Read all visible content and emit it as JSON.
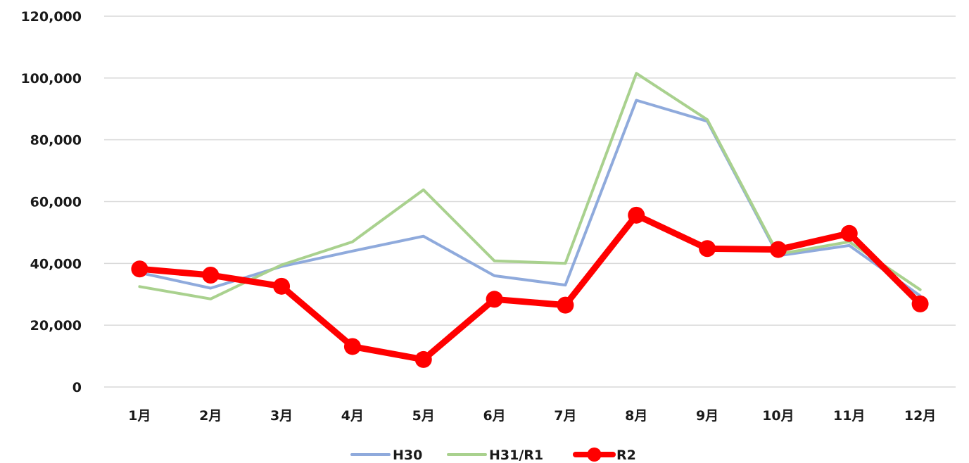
{
  "chart_data": {
    "type": "line",
    "categories": [
      "1月",
      "2月",
      "3月",
      "4月",
      "5月",
      "6月",
      "7月",
      "8月",
      "9月",
      "10月",
      "11月",
      "12月"
    ],
    "ylim": [
      0,
      120000
    ],
    "yticks": [
      0,
      20000,
      40000,
      60000,
      80000,
      100000,
      120000
    ],
    "ytick_labels": [
      "0",
      "20,000",
      "40,000",
      "60,000",
      "80,000",
      "100,000",
      "120,000"
    ],
    "grid": true,
    "legend_position": "bottom",
    "series": [
      {
        "name": "H30",
        "color": "#8faadc",
        "markers": false,
        "values": [
          37000,
          32000,
          39000,
          44000,
          48800,
          36000,
          33000,
          92800,
          86000,
          42500,
          45800,
          29500
        ]
      },
      {
        "name": "H31/R1",
        "color": "#a9d18e",
        "markers": false,
        "values": [
          32500,
          28500,
          39500,
          47000,
          63800,
          40800,
          40000,
          101500,
          86500,
          43000,
          47000,
          31500
        ]
      },
      {
        "name": "R2",
        "color": "#ff0000",
        "markers": true,
        "values": [
          38200,
          36200,
          32600,
          13100,
          8900,
          28400,
          26500,
          55600,
          44800,
          44500,
          49700,
          26900
        ]
      }
    ]
  }
}
